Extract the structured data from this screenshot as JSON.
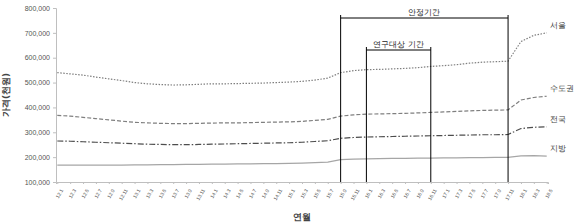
{
  "chart_data": {
    "type": "line",
    "x_label": "연월",
    "y_label": "가격(천원)",
    "categories": [
      "12.1",
      "12.3",
      "12.5",
      "12.7",
      "12.9",
      "12.11",
      "13.1",
      "13.3",
      "13.5",
      "13.7",
      "13.9",
      "13.11",
      "14.1",
      "14.3",
      "14.5",
      "14.7",
      "14.9",
      "14.11",
      "15.1",
      "15.3",
      "15.5",
      "15.7",
      "15.9",
      "15.11",
      "16.1",
      "16.3",
      "16.5",
      "16.7",
      "16.9",
      "16.11",
      "17.1",
      "17.3",
      "17.5",
      "17.7",
      "17.9",
      "17.11",
      "18.1",
      "18.3",
      "18.5"
    ],
    "ylim": [
      100000,
      800000
    ],
    "yticks": [
      {
        "value": 100000,
        "label": "100,000"
      },
      {
        "value": 200000,
        "label": "200,000"
      },
      {
        "value": 300000,
        "label": "300,000"
      },
      {
        "value": 400000,
        "label": "400,000"
      },
      {
        "value": 500000,
        "label": "500,000"
      },
      {
        "value": 600000,
        "label": "600,000"
      },
      {
        "value": 700000,
        "label": "700,000"
      },
      {
        "value": 800000,
        "label": "800,000"
      }
    ],
    "grid": false,
    "series": [
      {
        "name": "서울",
        "color": "#7f7f7f",
        "line_style": "dotted",
        "values": [
          540000,
          535000,
          530000,
          522000,
          515000,
          508000,
          500000,
          495000,
          492000,
          490000,
          491000,
          493000,
          495000,
          495000,
          496000,
          497000,
          498000,
          500000,
          502000,
          505000,
          510000,
          518000,
          540000,
          548000,
          552000,
          553000,
          555000,
          557000,
          560000,
          565000,
          568000,
          572000,
          578000,
          582000,
          584000,
          586000,
          665000,
          690000,
          700000
        ]
      },
      {
        "name": "수도권",
        "color": "#7f7f7f",
        "line_style": "dashed",
        "values": [
          368000,
          365000,
          360000,
          355000,
          350000,
          345000,
          340000,
          338000,
          336000,
          335000,
          335000,
          336000,
          337000,
          338000,
          338000,
          339000,
          340000,
          341000,
          342000,
          344000,
          348000,
          352000,
          365000,
          370000,
          373000,
          374000,
          375000,
          376000,
          378000,
          380000,
          382000,
          384000,
          386000,
          388000,
          389000,
          390000,
          430000,
          440000,
          445000
        ]
      },
      {
        "name": "전국",
        "color": "#4d4d4d",
        "line_style": "dashdot",
        "values": [
          265000,
          264000,
          262000,
          260000,
          258000,
          256000,
          254000,
          252000,
          251000,
          250000,
          250000,
          251000,
          252000,
          253000,
          254000,
          255000,
          256000,
          257000,
          258000,
          260000,
          263000,
          266000,
          276000,
          279000,
          281000,
          282000,
          283000,
          284000,
          285000,
          286000,
          287000,
          288000,
          289000,
          290000,
          290000,
          291000,
          315000,
          320000,
          322000
        ]
      },
      {
        "name": "지방",
        "color": "#a6a6a6",
        "line_style": "solid",
        "values": [
          168000,
          168000,
          168000,
          168000,
          168000,
          168000,
          169000,
          169000,
          170000,
          170000,
          171000,
          171000,
          172000,
          172000,
          173000,
          173000,
          174000,
          174000,
          175000,
          176000,
          178000,
          180000,
          190000,
          192000,
          193000,
          194000,
          195000,
          195000,
          196000,
          196000,
          197000,
          197000,
          198000,
          198000,
          199000,
          199000,
          205000,
          206000,
          204000
        ]
      }
    ],
    "annotations": [
      {
        "text": "안정기간",
        "start": "15.9",
        "end": "17.11"
      },
      {
        "text": "연구대상 기간",
        "start": "16.1",
        "end": "16.11"
      }
    ]
  }
}
